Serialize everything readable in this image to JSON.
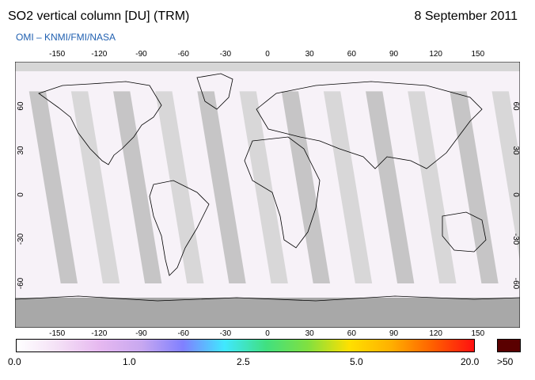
{
  "header": {
    "title": "SO2 vertical column [DU] (TRM)",
    "date": "8 September 2011",
    "credit": "OMI  –  KNMI/FMI/NASA"
  },
  "map": {
    "lon_ticks": [
      -150,
      -120,
      -90,
      -60,
      -30,
      0,
      30,
      60,
      90,
      120,
      150
    ],
    "lat_ticks": [
      60,
      30,
      0,
      -30,
      -60
    ],
    "lon_range": [
      -180,
      180
    ],
    "lat_range": [
      -90,
      90
    ]
  },
  "colorbar": {
    "labels": [
      "0.0",
      "1.0",
      "2.5",
      "5.0",
      "20.0"
    ],
    "overflow_label": ">50",
    "colors": [
      "#ffffff",
      "#f4e0f6",
      "#e6b8f0",
      "#c8a8f0",
      "#8080ff",
      "#40e8ff",
      "#40e080",
      "#80e040",
      "#ffe000",
      "#ffb000",
      "#ff6000",
      "#ff1010"
    ],
    "overflow_color": "#5a0000"
  }
}
